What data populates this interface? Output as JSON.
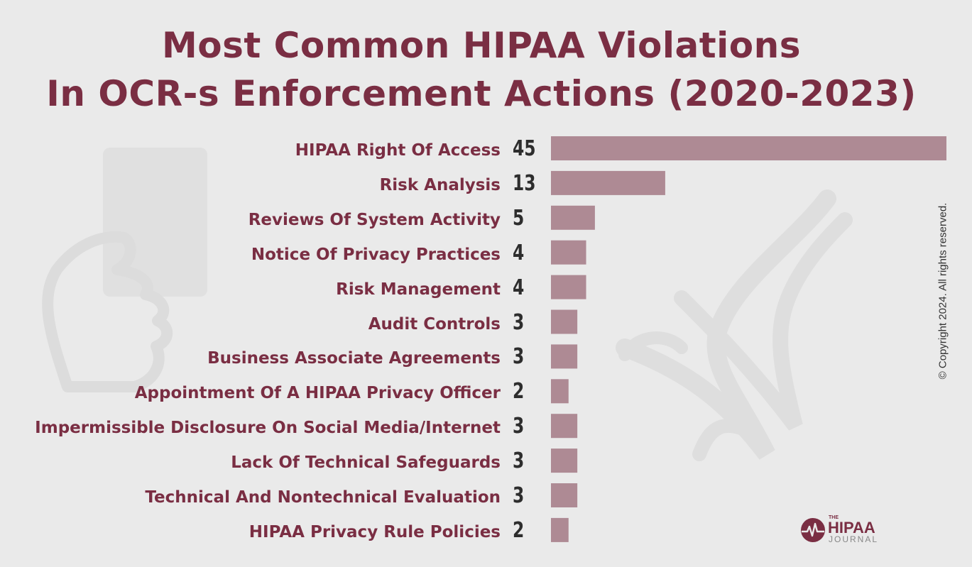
{
  "title_lines": [
    "Most Common HIPAA Violations",
    "In OCR-s Enforcement Actions (2020-2023)"
  ],
  "copyright": "© Copyright 2024. All rights reserved.",
  "logo": {
    "the": "THE",
    "main": "HIPAA",
    "sub": "JOURNAL"
  },
  "colors": {
    "bar": "#ae8a94",
    "title": "#7a2e43",
    "value_text": "#2d2d2d",
    "background": "#eaeaea"
  },
  "chart_data": {
    "type": "bar",
    "orientation": "horizontal",
    "title": "Most Common HIPAA Violations In OCR-s Enforcement Actions (2020-2023)",
    "categories": [
      "HIPAA Right Of Access",
      "Risk Analysis",
      "Reviews Of System Activity",
      "Notice Of Privacy Practices",
      "Risk Management",
      "Audit Controls",
      "Business Associate Agreements",
      "Appointment Of A HIPAA Privacy Officer",
      "Impermissible Disclosure On Social Media/Internet",
      "Lack Of Technical Safeguards",
      "Technical And Nontechnical Evaluation",
      "HIPAA Privacy Rule Policies"
    ],
    "values": [
      45,
      13,
      5,
      4,
      4,
      3,
      3,
      2,
      3,
      3,
      3,
      2
    ],
    "xlim": [
      0,
      45
    ],
    "grid": false,
    "legend": "none"
  }
}
